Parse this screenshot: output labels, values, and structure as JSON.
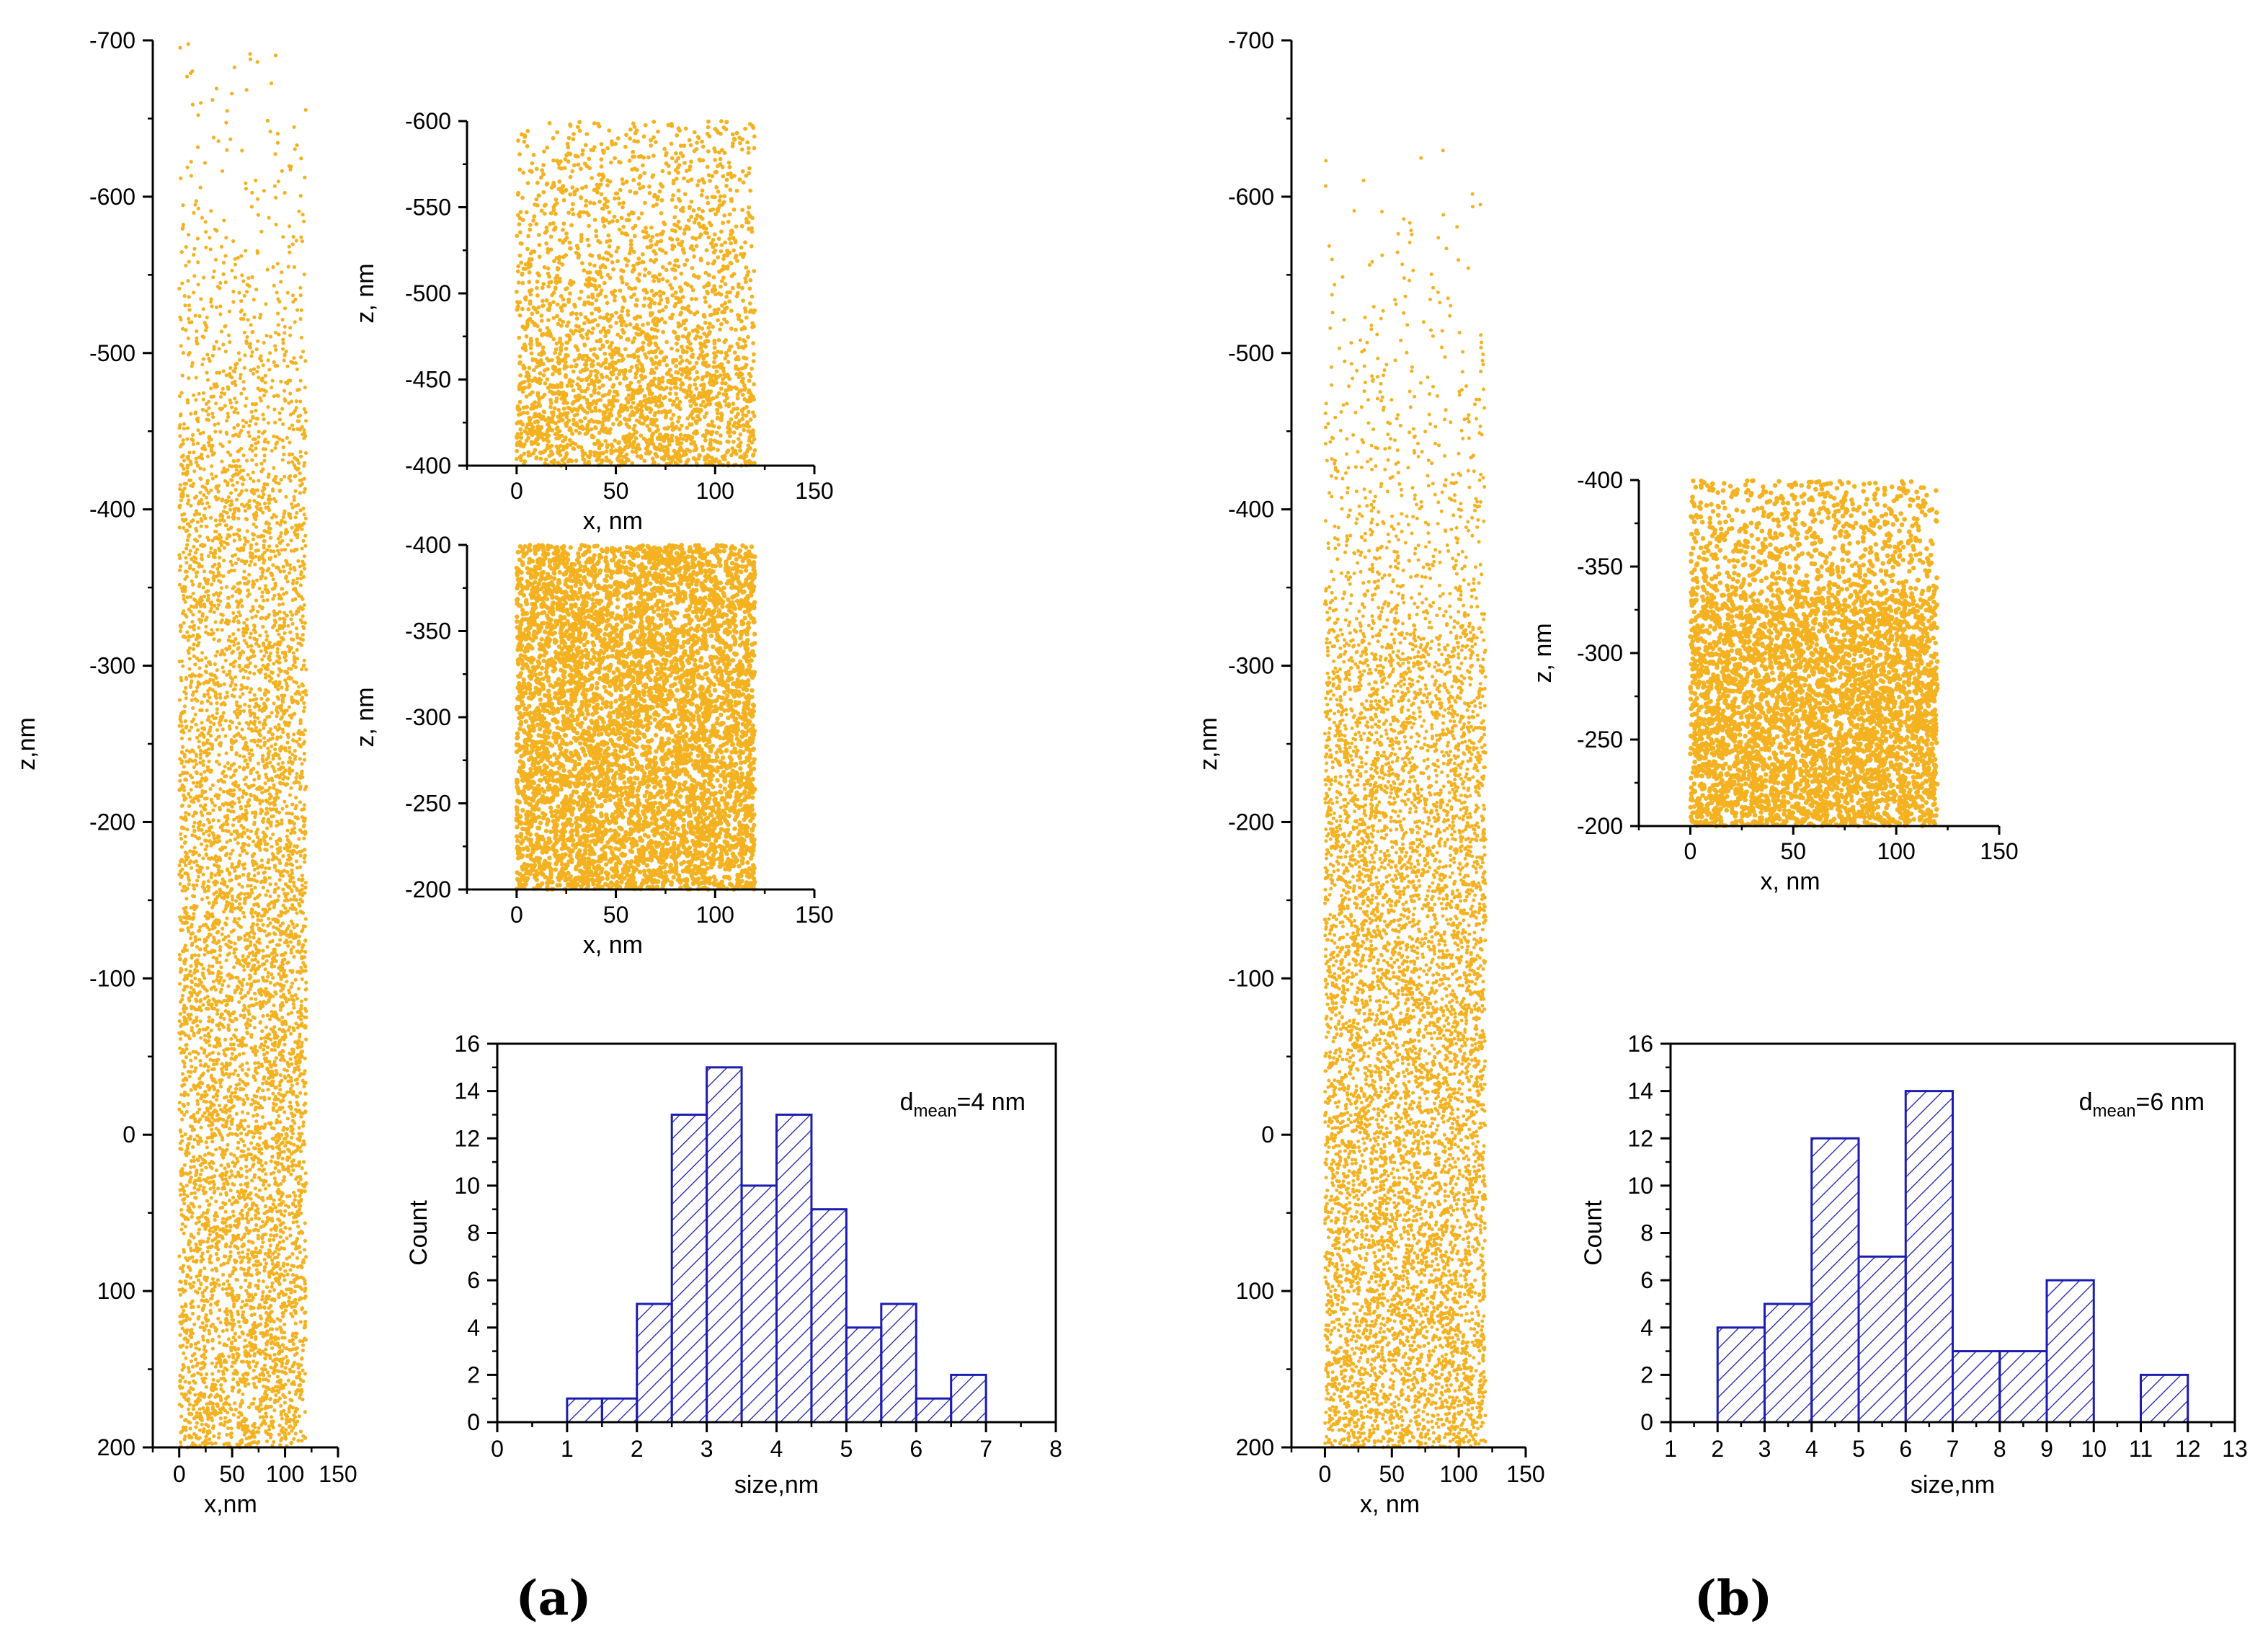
{
  "colors": {
    "dots": "#f4b120",
    "bars": "#1c1cb0",
    "axis": "#000000"
  },
  "chart_data": [
    {
      "id": "a_main",
      "panel": "a",
      "type": "scatter",
      "description_level": "simulated particle positions",
      "xlabel": "x,nm",
      "ylabel": "z,nm",
      "xlim": [
        -25,
        150
      ],
      "ylim": [
        200,
        -700
      ],
      "x_reversed": false,
      "xticks": [
        "0",
        "50",
        "100",
        "150"
      ],
      "yticks": [
        "-700",
        "-600",
        "-500",
        "-400",
        "-300",
        "-200",
        "-100",
        "0",
        "100",
        "200"
      ],
      "x_data_range": [
        0,
        120
      ],
      "z_data_range": [
        -700,
        200
      ],
      "density_profile": [
        [
          -700,
          1
        ],
        [
          -650,
          2
        ],
        [
          -600,
          4
        ],
        [
          -550,
          8
        ],
        [
          -500,
          14
        ],
        [
          -450,
          22
        ],
        [
          -420,
          28
        ],
        [
          -400,
          32
        ],
        [
          -300,
          34
        ],
        [
          -200,
          40
        ],
        [
          -100,
          42
        ],
        [
          0,
          40
        ],
        [
          100,
          40
        ],
        [
          150,
          42
        ],
        [
          200,
          44
        ]
      ]
    },
    {
      "id": "a_inset1",
      "panel": "a",
      "type": "scatter",
      "xlabel": "x, nm",
      "ylabel": "z, nm",
      "xlim": [
        -25,
        150
      ],
      "ylim": [
        -400,
        -600
      ],
      "xticks": [
        "0",
        "50",
        "100",
        "150"
      ],
      "yticks": [
        "-600",
        "-550",
        "-500",
        "-450",
        "-400"
      ],
      "x_data_range": [
        0,
        120
      ],
      "z_data_range": [
        -600,
        -400
      ],
      "density_profile": [
        [
          -600,
          6
        ],
        [
          -550,
          9
        ],
        [
          -500,
          12
        ],
        [
          -470,
          16
        ],
        [
          -450,
          22
        ],
        [
          -400,
          26
        ]
      ]
    },
    {
      "id": "a_inset2",
      "panel": "a",
      "type": "scatter",
      "xlabel": "x, nm",
      "ylabel": "z, nm",
      "xlim": [
        -25,
        150
      ],
      "ylim": [
        -200,
        -400
      ],
      "xticks": [
        "0",
        "50",
        "100",
        "150"
      ],
      "yticks": [
        "-400",
        "-350",
        "-300",
        "-250",
        "-200"
      ],
      "x_data_range": [
        0,
        120
      ],
      "z_data_range": [
        -400,
        -200
      ],
      "density_profile": [
        [
          -400,
          30
        ],
        [
          -300,
          30
        ],
        [
          -200,
          32
        ]
      ]
    },
    {
      "id": "a_hist",
      "panel": "a",
      "type": "bar",
      "xlabel": "size,nm",
      "ylabel": "Count",
      "annotation": {
        "prefix": "d",
        "subscript": "mean",
        "suffix": "=4 nm"
      },
      "xlim": [
        0,
        8
      ],
      "ylim": [
        0,
        16
      ],
      "xticks": [
        "0",
        "1",
        "2",
        "3",
        "4",
        "5",
        "6",
        "7",
        "8"
      ],
      "yticks": [
        "0",
        "2",
        "4",
        "6",
        "8",
        "10",
        "12",
        "14",
        "16"
      ],
      "bin_width": 0.5,
      "bins": [
        [
          1.0,
          1
        ],
        [
          1.5,
          1
        ],
        [
          2.0,
          5
        ],
        [
          2.5,
          13
        ],
        [
          3.0,
          15
        ],
        [
          3.5,
          10
        ],
        [
          4.0,
          13
        ],
        [
          4.5,
          9
        ],
        [
          5.0,
          4
        ],
        [
          5.5,
          5
        ],
        [
          6.0,
          1
        ],
        [
          6.5,
          2
        ]
      ]
    },
    {
      "id": "b_main",
      "panel": "b",
      "type": "scatter",
      "xlabel": "x, nm",
      "ylabel": "z,nm",
      "xlim": [
        -25,
        150
      ],
      "ylim": [
        200,
        -700
      ],
      "xticks": [
        "0",
        "50",
        "100",
        "150"
      ],
      "yticks": [
        "-700",
        "-600",
        "-500",
        "-400",
        "-300",
        "-200",
        "-100",
        "0",
        "100",
        "200"
      ],
      "x_data_range": [
        0,
        120
      ],
      "z_data_range": [
        -630,
        200
      ],
      "density_profile": [
        [
          -630,
          0.5
        ],
        [
          -550,
          2
        ],
        [
          -500,
          4
        ],
        [
          -450,
          7
        ],
        [
          -400,
          10
        ],
        [
          -350,
          14
        ],
        [
          -330,
          20
        ],
        [
          -310,
          34
        ],
        [
          -200,
          40
        ],
        [
          -100,
          42
        ],
        [
          0,
          42
        ],
        [
          100,
          44
        ],
        [
          150,
          46
        ],
        [
          200,
          48
        ]
      ]
    },
    {
      "id": "b_inset",
      "panel": "b",
      "type": "scatter",
      "xlabel": "x, nm",
      "ylabel": "z, nm",
      "xlim": [
        -25,
        150
      ],
      "ylim": [
        -200,
        -400
      ],
      "xticks": [
        "0",
        "50",
        "100",
        "150"
      ],
      "yticks": [
        "-400",
        "-350",
        "-300",
        "-250",
        "-200"
      ],
      "x_data_range": [
        0,
        120
      ],
      "z_data_range": [
        -400,
        -200
      ],
      "density_profile": [
        [
          -400,
          10
        ],
        [
          -340,
          13
        ],
        [
          -325,
          30
        ],
        [
          -200,
          36
        ]
      ]
    },
    {
      "id": "b_hist",
      "panel": "b",
      "type": "bar",
      "xlabel": "size,nm",
      "ylabel": "Count",
      "annotation": {
        "prefix": "d",
        "subscript": "mean",
        "suffix": "=6 nm"
      },
      "xlim": [
        1,
        13
      ],
      "ylim": [
        0,
        16
      ],
      "xticks": [
        "1",
        "2",
        "3",
        "4",
        "5",
        "6",
        "7",
        "8",
        "9",
        "10",
        "11",
        "12",
        "13"
      ],
      "yticks": [
        "0",
        "2",
        "4",
        "6",
        "8",
        "10",
        "12",
        "14",
        "16"
      ],
      "bin_width": 1,
      "bins": [
        [
          2,
          4
        ],
        [
          3,
          5
        ],
        [
          4,
          12
        ],
        [
          5,
          7
        ],
        [
          6,
          14
        ],
        [
          7,
          3
        ],
        [
          8,
          3
        ],
        [
          9,
          6
        ],
        [
          11,
          2
        ]
      ]
    }
  ],
  "panel_labels": {
    "a": "(a)",
    "b": "(b)"
  }
}
